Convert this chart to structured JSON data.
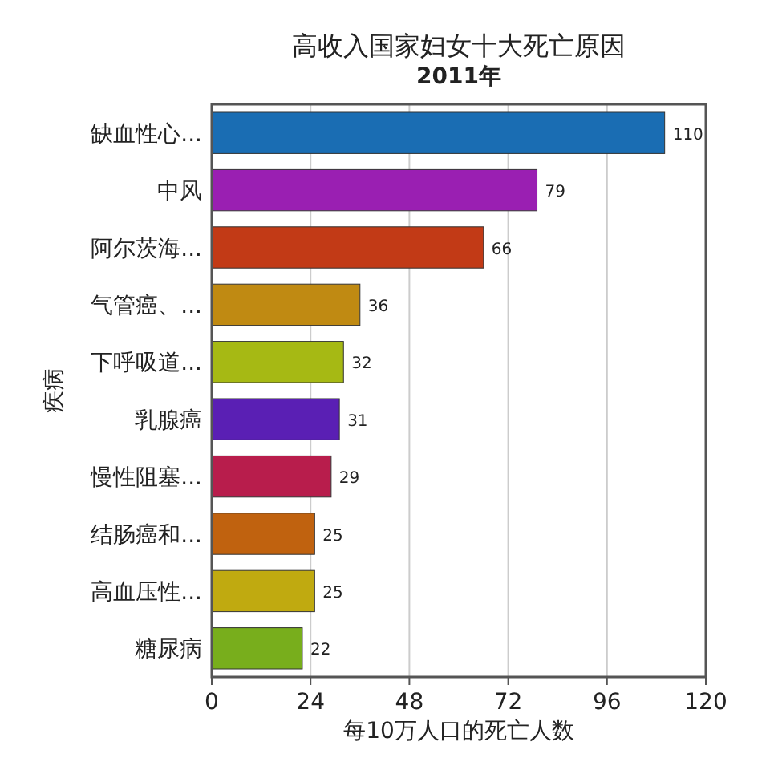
{
  "chart_data": {
    "type": "bar",
    "orientation": "horizontal",
    "title": "高收入国家妇女十大死亡原因",
    "subtitle": "2011年",
    "xlabel": "每10万人口的死亡人数",
    "ylabel": "疾病",
    "categories": [
      "缺血性心...",
      "中风",
      "阿尔茨海...",
      "气管癌、...",
      "下呼吸道...",
      "乳腺癌",
      "慢性阻塞...",
      "结肠癌和...",
      "高血压性...",
      "糖尿病"
    ],
    "values": [
      110,
      79,
      66,
      36,
      32,
      31,
      29,
      25,
      25,
      22
    ],
    "colors": [
      "#1a6db3",
      "#9a1fb2",
      "#c23a16",
      "#c08a12",
      "#a6b914",
      "#5a1fb4",
      "#b81d4c",
      "#c0620f",
      "#c0aa10",
      "#78ae1c"
    ],
    "xlim": [
      0,
      120
    ],
    "xticks": [
      0,
      24,
      48,
      72,
      96,
      120
    ],
    "grid": "x",
    "data_labels": true
  }
}
